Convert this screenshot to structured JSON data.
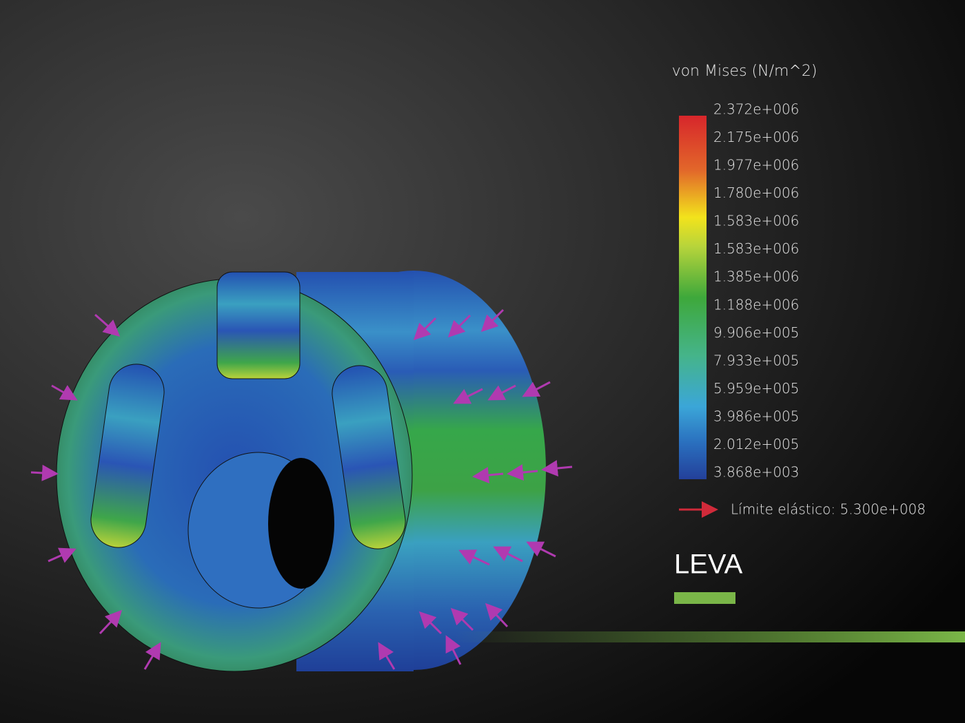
{
  "legend": {
    "title": "von Mises (N/m^2)",
    "labels": [
      "2.372e+006",
      "2.175e+006",
      "1.977e+006",
      "1.780e+006",
      "1.583e+006",
      "1.583e+006",
      "1.385e+006",
      "1.188e+006",
      "9.906e+005",
      "7.933e+005",
      "5.959e+005",
      "3.986e+005",
      "2.012e+005",
      "3.868e+003"
    ]
  },
  "yield_limit": "Límite elástico: 5.300e+008",
  "title": "LEVA"
}
